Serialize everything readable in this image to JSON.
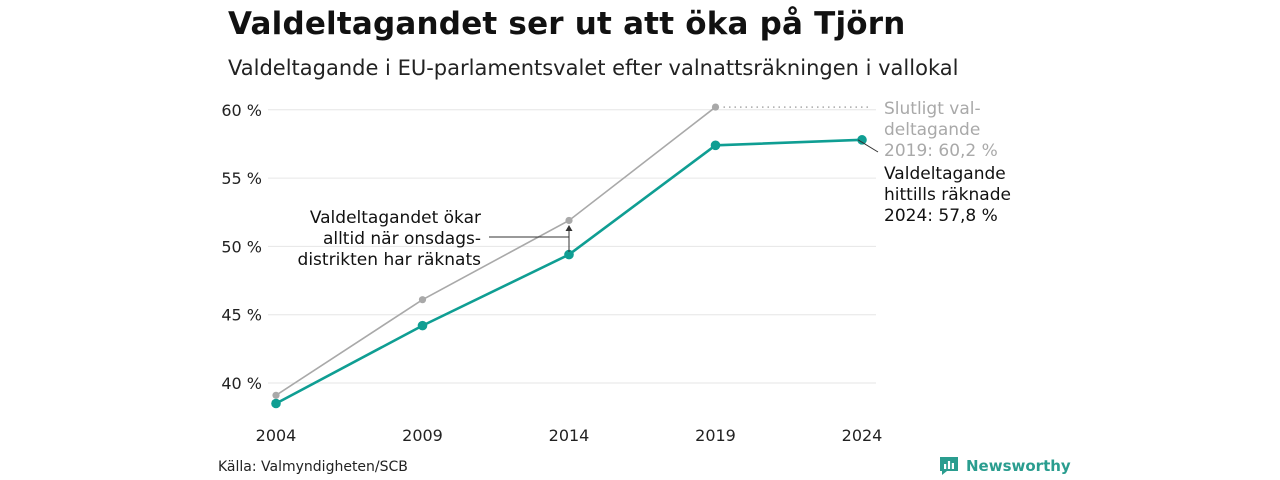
{
  "header": {
    "title": "Valdeltagandet ser ut att öka på Tjörn",
    "subtitle": "Valdeltagande i EU-parlamentsvalet efter valnattsräkningen i vallokal"
  },
  "footer": {
    "source": "Källa: Valmyndigheten/SCB",
    "brand": "Newsworthy",
    "brand_icon": "bar-chart-icon"
  },
  "colors": {
    "primary": "#0f9e93",
    "secondary": "#a9a9a9",
    "grid": "#e6e6e6",
    "brand": "#2a9d8f"
  },
  "chart_data": {
    "type": "line",
    "title": "",
    "x": [
      2004,
      2009,
      2014,
      2019,
      2024
    ],
    "x_tick_labels": [
      "2004",
      "2009",
      "2014",
      "2019",
      "2024"
    ],
    "y_ticks": [
      40,
      45,
      50,
      55,
      60
    ],
    "y_tick_labels": [
      "40 %",
      "45 %",
      "50 %",
      "55 %",
      "60 %"
    ],
    "ylim": [
      38.5,
      61
    ],
    "grid": true,
    "series": [
      {
        "key": "final",
        "values": [
          39.1,
          46.1,
          51.9,
          60.2,
          null
        ],
        "color": "#a9a9a9"
      },
      {
        "key": "counted",
        "values": [
          38.5,
          44.2,
          49.4,
          57.4,
          57.8
        ],
        "color": "#0f9e93"
      }
    ],
    "annotations": {
      "final_label": [
        "Slutligt val-",
        "deltagande",
        "2019: 60,2 %"
      ],
      "counted_label": [
        "Valdeltagande",
        "hittills räknade",
        "2024: 57,8 %"
      ],
      "note": [
        "Valdeltagandet ökar",
        "alltid när onsdags-",
        "distrikten har räknats"
      ]
    }
  }
}
